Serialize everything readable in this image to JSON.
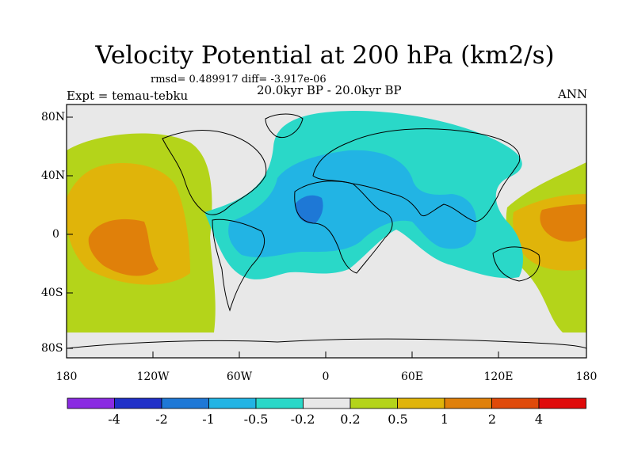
{
  "title": "Velocity Potential at 200 hPa (km2/s)",
  "stats": "rmsd= 0.489917 diff= -3.917e-06",
  "experiment": "Expt = temau-tebku",
  "period": "20.0kyr BP - 20.0kyr BP",
  "season": "ANN",
  "lat_ticks": [
    "80N",
    "40N",
    "0",
    "40S",
    "80S"
  ],
  "lon_ticks": [
    "180",
    "120W",
    "60W",
    "0",
    "60E",
    "120E",
    "180"
  ],
  "colorbar": {
    "labels": [
      "-4",
      "-2",
      "-1",
      "-0.5",
      "-0.2",
      "0.2",
      "0.5",
      "1",
      "2",
      "4"
    ],
    "colors": [
      "#8a2be2",
      "#2030c8",
      "#1e78d6",
      "#22b4e4",
      "#2ad8c8",
      "#e8e8e8",
      "#b4d41a",
      "#e0b40a",
      "#e0800a",
      "#e04a0a",
      "#e00a0a"
    ]
  },
  "fields": {
    "background": "#e8e8e8",
    "level_neg_02": "#2ad8c8",
    "level_neg_05": "#22b4e4",
    "level_neg_1": "#1e78d6",
    "level_pos_02": "#b4d41a",
    "level_pos_05": "#e0b40a",
    "level_pos_1": "#e0800a"
  }
}
